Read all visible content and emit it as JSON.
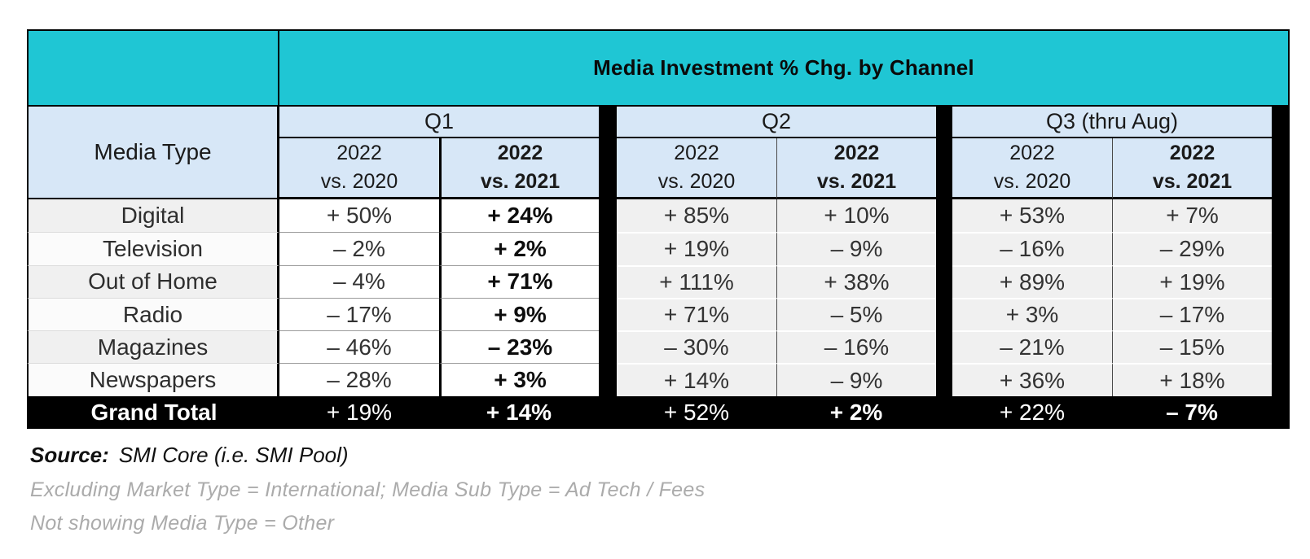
{
  "chart_data": {
    "type": "table",
    "title": "Media Investment % Chg. by Channel",
    "row_header": "Media Type",
    "column_groups": [
      "Q1",
      "Q2",
      "Q3 (thru Aug)"
    ],
    "columns": [
      "Q1 2022 vs. 2020",
      "Q1 2022 vs. 2021",
      "Q2 2022 vs. 2020",
      "Q2 2022 vs. 2021",
      "Q3 2022 vs. 2020",
      "Q3 2022 vs. 2021"
    ],
    "rows": [
      "Digital",
      "Television",
      "Out of Home",
      "Radio",
      "Magazines",
      "Newspapers",
      "Grand Total"
    ],
    "values_pct": [
      [
        50,
        24,
        85,
        10,
        53,
        7
      ],
      [
        -2,
        2,
        19,
        -9,
        -16,
        -29
      ],
      [
        -4,
        71,
        111,
        38,
        89,
        19
      ],
      [
        -17,
        9,
        71,
        -5,
        3,
        -17
      ],
      [
        -46,
        -23,
        -30,
        -16,
        -21,
        -15
      ],
      [
        -28,
        3,
        14,
        -9,
        36,
        18
      ],
      [
        19,
        14,
        52,
        2,
        22,
        -7
      ]
    ]
  },
  "table": {
    "title": "Media Investment % Chg. by Channel",
    "row_header": "Media Type",
    "q1_label": "Q1",
    "q2_label": "Q2",
    "q3_label": "Q3 (thru Aug)",
    "sub_year": "2022",
    "sub_vs2020": "vs. 2020",
    "sub_vs2021": "vs. 2021",
    "rows": [
      {
        "label": "Digital",
        "values": [
          "+ 50%",
          "+ 24%",
          "+ 85%",
          "+ 10%",
          "+ 53%",
          "+ 7%"
        ]
      },
      {
        "label": "Television",
        "values": [
          "– 2%",
          "+ 2%",
          "+ 19%",
          "– 9%",
          "– 16%",
          "– 29%"
        ]
      },
      {
        "label": "Out of Home",
        "values": [
          "– 4%",
          "+ 71%",
          "+ 111%",
          "+ 38%",
          "+ 89%",
          "+ 19%"
        ]
      },
      {
        "label": "Radio",
        "values": [
          "– 17%",
          "+ 9%",
          "+ 71%",
          "– 5%",
          "+ 3%",
          "– 17%"
        ]
      },
      {
        "label": "Magazines",
        "values": [
          "– 46%",
          "– 23%",
          "– 30%",
          "– 16%",
          "– 21%",
          "– 15%"
        ]
      },
      {
        "label": "Newspapers",
        "values": [
          "– 28%",
          "+ 3%",
          "+ 14%",
          "– 9%",
          "+ 36%",
          "+ 18%"
        ]
      }
    ],
    "grand_total": {
      "label": "Grand Total",
      "values": [
        "+ 19%",
        "+ 14%",
        "+ 52%",
        "+ 2%",
        "+ 22%",
        "– 7%"
      ]
    }
  },
  "footer": {
    "source_label": "Source:",
    "source_value": "SMI Core (i.e. SMI Pool)",
    "note1": "Excluding Market Type = International; Media Sub Type = Ad Tech / Fees",
    "note2": "Not showing Media Type = Other"
  },
  "colors": {
    "header_teal": "#1FC6D4",
    "header_blue": "#D7E7F7",
    "row_gray": "#F0F0F0",
    "grand_total_bg": "#000000"
  }
}
